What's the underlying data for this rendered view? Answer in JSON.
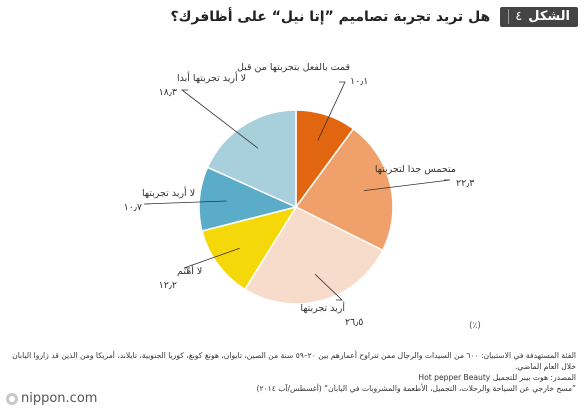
{
  "header": {
    "figure_label": "الشكل",
    "figure_number": "٤",
    "title": "هل تريد تجربة تصاميم ”إتا نيل“ على أظافرك؟"
  },
  "chart_data": {
    "type": "pie",
    "unit": "(٪)",
    "colors": [
      "#e2660f",
      "#f0a06a",
      "#f7dccb",
      "#f4d809",
      "#5aacc8",
      "#a8cfdc"
    ],
    "slices": [
      {
        "label": "قمت بالفعل بتجربتها من قبل",
        "value": 10.1,
        "value_text": "١٠٫١"
      },
      {
        "label": "متحمس جدا لتجربتها",
        "value": 22.3,
        "value_text": "٢٢٫٣"
      },
      {
        "label": "أريد تجربتها",
        "value": 26.5,
        "value_text": "٢٦٫٥"
      },
      {
        "label": "لا أهتم",
        "value": 12.2,
        "value_text": "١٢٫٢"
      },
      {
        "label": "لا أريد تجربتها",
        "value": 10.7,
        "value_text": "١٠٫٧"
      },
      {
        "label": "لا أريد تجربتها أبدا",
        "value": 18.3,
        "value_text": "١٨٫٣"
      }
    ]
  },
  "footnotes": {
    "note1": "الفئة المستهدفة في الاستبيان: ٦٠٠ من السيدات والرجال ممن تتراوح أعمارهم بين ٢٠–٥٩ سنة من الصين، تايوان، هونغ كونغ، كوريا الجنوبية، تايلاند، أمريكا ومن الذين قد زاروا اليابان خلال العام الماضي.",
    "note2": "المصدر: هوت بيبر للتجميل Hot pepper Beauty",
    "note3": "”مسح خارجي عن السياحة والرحلات، التجميل، الأطعمة والمشروبات في اليابان“ (أغسطس/آب ٢٠١٤)"
  },
  "logo": {
    "text": "nippon.com"
  }
}
